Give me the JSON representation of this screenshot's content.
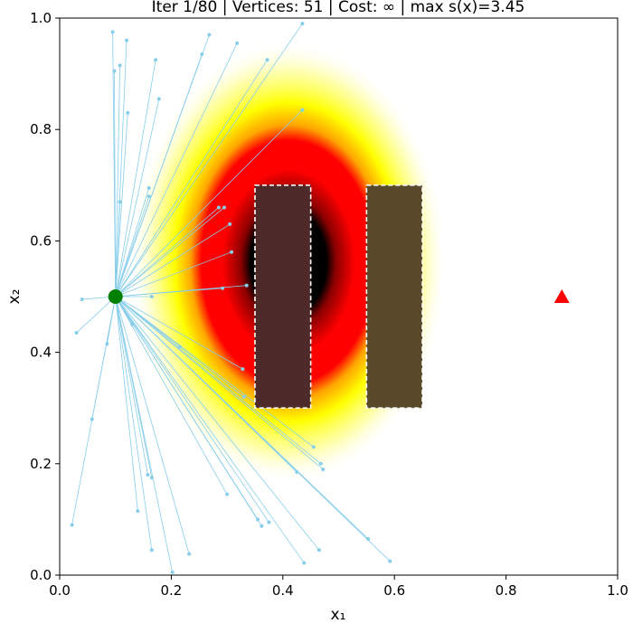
{
  "chart_data": {
    "type": "scatter",
    "title": "Iter 1/80  |  Vertices: 51  |  Cost: ∞  |  max s(x)=3.45",
    "xlabel": "x₁",
    "ylabel": "x₂",
    "xlim": [
      0.0,
      1.0
    ],
    "ylim": [
      0.0,
      1.0
    ],
    "x_ticks": [
      0.0,
      0.2,
      0.4,
      0.6,
      0.8,
      1.0
    ],
    "y_ticks": [
      0.0,
      0.2,
      0.4,
      0.6,
      0.8,
      1.0
    ],
    "x_tick_labels": [
      "0.0",
      "0.2",
      "0.4",
      "0.6",
      "0.8",
      "1.0"
    ],
    "y_tick_labels": [
      "0.0",
      "0.2",
      "0.4",
      "0.6",
      "0.8",
      "1.0"
    ],
    "grid": false,
    "start": {
      "x": 0.1,
      "y": 0.5,
      "color": "#008000"
    },
    "goal": {
      "x": 0.9,
      "y": 0.5,
      "color": "#ff0000"
    },
    "obstacles": [
      {
        "x0": 0.35,
        "y0": 0.3,
        "x1": 0.45,
        "y1": 0.7,
        "color": "#4f2a2a"
      },
      {
        "x0": 0.55,
        "y0": 0.3,
        "x1": 0.65,
        "y1": 0.7,
        "color": "#594a2c"
      }
    ],
    "heat_blob": {
      "cx": 0.41,
      "cy": 0.57,
      "colors": [
        "#ffffff",
        "#ffff00",
        "#ffa500",
        "#ff0000",
        "#8b0000",
        "#000000"
      ]
    },
    "edge_color": "#87ceeb",
    "tree_vertices": [
      {
        "x": 0.095,
        "y": 0.975
      },
      {
        "x": 0.098,
        "y": 0.905
      },
      {
        "x": 0.108,
        "y": 0.915
      },
      {
        "x": 0.12,
        "y": 0.96
      },
      {
        "x": 0.172,
        "y": 0.925
      },
      {
        "x": 0.178,
        "y": 0.855
      },
      {
        "x": 0.122,
        "y": 0.83
      },
      {
        "x": 0.16,
        "y": 0.695
      },
      {
        "x": 0.16,
        "y": 0.68
      },
      {
        "x": 0.108,
        "y": 0.67
      },
      {
        "x": 0.255,
        "y": 0.935
      },
      {
        "x": 0.268,
        "y": 0.97
      },
      {
        "x": 0.318,
        "y": 0.955
      },
      {
        "x": 0.372,
        "y": 0.925
      },
      {
        "x": 0.435,
        "y": 0.99
      },
      {
        "x": 0.435,
        "y": 0.835
      },
      {
        "x": 0.285,
        "y": 0.66
      },
      {
        "x": 0.295,
        "y": 0.66
      },
      {
        "x": 0.305,
        "y": 0.63
      },
      {
        "x": 0.308,
        "y": 0.58
      },
      {
        "x": 0.335,
        "y": 0.52
      },
      {
        "x": 0.292,
        "y": 0.515
      },
      {
        "x": 0.165,
        "y": 0.5
      },
      {
        "x": 0.04,
        "y": 0.495
      },
      {
        "x": 0.03,
        "y": 0.435
      },
      {
        "x": 0.085,
        "y": 0.415
      },
      {
        "x": 0.13,
        "y": 0.45
      },
      {
        "x": 0.215,
        "y": 0.41
      },
      {
        "x": 0.328,
        "y": 0.37
      },
      {
        "x": 0.33,
        "y": 0.32
      },
      {
        "x": 0.455,
        "y": 0.23
      },
      {
        "x": 0.468,
        "y": 0.2
      },
      {
        "x": 0.472,
        "y": 0.19
      },
      {
        "x": 0.425,
        "y": 0.185
      },
      {
        "x": 0.158,
        "y": 0.18
      },
      {
        "x": 0.165,
        "y": 0.175
      },
      {
        "x": 0.3,
        "y": 0.145
      },
      {
        "x": 0.355,
        "y": 0.1
      },
      {
        "x": 0.375,
        "y": 0.095
      },
      {
        "x": 0.362,
        "y": 0.088
      },
      {
        "x": 0.058,
        "y": 0.28
      },
      {
        "x": 0.022,
        "y": 0.09
      },
      {
        "x": 0.14,
        "y": 0.115
      },
      {
        "x": 0.165,
        "y": 0.045
      },
      {
        "x": 0.232,
        "y": 0.038
      },
      {
        "x": 0.202,
        "y": 0.005
      },
      {
        "x": 0.438,
        "y": 0.022
      },
      {
        "x": 0.465,
        "y": 0.045
      },
      {
        "x": 0.553,
        "y": 0.065
      },
      {
        "x": 0.592,
        "y": 0.025
      }
    ]
  }
}
